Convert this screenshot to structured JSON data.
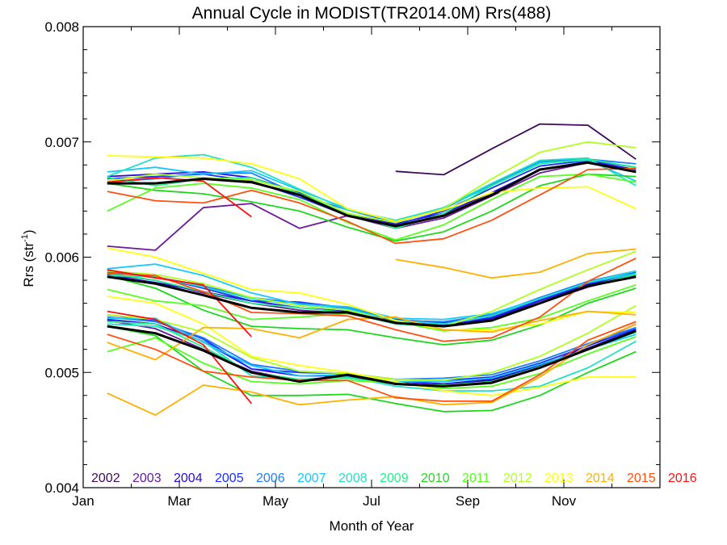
{
  "chart_data": {
    "type": "line",
    "title": "Annual Cycle in MODIST(TR2014.0M) Rrs(488)",
    "xlabel": "Month of Year",
    "ylabel": "Rrs (str",
    "ylabel_sup": "-1",
    "ylabel_close": ")",
    "xlim": [
      1,
      13
    ],
    "ylim": [
      0.004,
      0.008
    ],
    "x_ticks": [
      {
        "value": 1,
        "label": "Jan"
      },
      {
        "value": 3,
        "label": "Mar"
      },
      {
        "value": 5,
        "label": "May"
      },
      {
        "value": 7,
        "label": "Jul"
      },
      {
        "value": 9,
        "label": "Sep"
      },
      {
        "value": 11,
        "label": "Nov"
      }
    ],
    "y_ticks": [
      {
        "value": 0.004,
        "label": "0.004"
      },
      {
        "value": 0.005,
        "label": "0.005"
      },
      {
        "value": 0.006,
        "label": "0.006"
      },
      {
        "value": 0.007,
        "label": "0.007"
      },
      {
        "value": 0.008,
        "label": "0.008"
      }
    ],
    "x": [
      1.5,
      2.5,
      3.5,
      4.5,
      5.5,
      6.5,
      7.5,
      8.5,
      9.5,
      10.5,
      11.5,
      12.5
    ],
    "legend_placement": "bottom",
    "series": [
      {
        "name": "2002",
        "color": "#3d0a5a",
        "lines": [
          [
            null,
            null,
            null,
            null,
            null,
            null,
            0.006745,
            0.006715,
            0.00694,
            0.007155,
            0.007145,
            0.00685
          ],
          [
            null,
            null,
            null,
            null,
            null,
            null,
            0.00544,
            0.0054,
            0.00546,
            0.00562,
            0.00577,
            0.00588
          ],
          [
            null,
            null,
            null,
            null,
            null,
            null,
            0.00492,
            0.0049,
            0.00493,
            0.00505,
            0.00523,
            0.00542
          ]
        ]
      },
      {
        "name": "2003",
        "color": "#6a1a9a",
        "lines": [
          [
            0.006095,
            0.00606,
            0.00643,
            0.006465,
            0.00625,
            0.00636,
            0.00625,
            0.00634,
            0.00653,
            0.00673,
            0.00682,
            0.00674
          ],
          [
            0.00585,
            0.0058,
            0.00569,
            0.0056,
            0.00554,
            0.00551,
            0.00543,
            0.00541,
            0.00546,
            0.0056,
            0.00574,
            0.00584
          ],
          [
            0.00545,
            0.00538,
            0.0052,
            0.00501,
            0.00493,
            0.00496,
            0.0049,
            0.00488,
            0.00492,
            0.00505,
            0.00521,
            0.00536
          ]
        ]
      },
      {
        "name": "2004",
        "color": "#2a0adc",
        "lines": [
          [
            0.0067,
            0.00672,
            0.00674,
            0.00669,
            0.00656,
            0.00638,
            0.00629,
            0.00638,
            0.00656,
            0.00676,
            0.00683,
            0.00676
          ],
          [
            0.00584,
            0.00578,
            0.0057,
            0.00562,
            0.00556,
            0.00553,
            0.00544,
            0.00541,
            0.00547,
            0.00562,
            0.00576,
            0.00585
          ],
          [
            0.00546,
            0.00542,
            0.00527,
            0.00503,
            0.00497,
            0.00497,
            0.00492,
            0.0049,
            0.00494,
            0.00506,
            0.00521,
            0.00537
          ]
        ]
      },
      {
        "name": "2005",
        "color": "#1a30ff",
        "lines": [
          [
            0.00668,
            0.0067,
            0.00672,
            0.00666,
            0.00652,
            0.00636,
            0.00628,
            0.0064,
            0.0066,
            0.00679,
            0.00684,
            0.00678
          ],
          [
            0.00588,
            0.00583,
            0.00573,
            0.00562,
            0.00561,
            0.00556,
            0.00546,
            0.00543,
            0.00548,
            0.00563,
            0.00577,
            0.00587
          ],
          [
            0.0055,
            0.00545,
            0.00529,
            0.00503,
            0.005,
            0.00499,
            0.00494,
            0.00493,
            0.00496,
            0.00508,
            0.00523,
            0.00538
          ]
        ]
      },
      {
        "name": "2006",
        "color": "#1a80ff",
        "lines": [
          [
            0.00665,
            0.00668,
            0.00673,
            0.00673,
            0.00654,
            0.00641,
            0.0063,
            0.00642,
            0.00663,
            0.00683,
            0.00685,
            0.00681
          ],
          [
            0.00587,
            0.00583,
            0.00575,
            0.00565,
            0.0056,
            0.00556,
            0.00545,
            0.00544,
            0.0055,
            0.00565,
            0.00579,
            0.00588
          ],
          [
            0.00548,
            0.00544,
            0.0053,
            0.00507,
            0.00501,
            0.00499,
            0.00494,
            0.00495,
            0.00498,
            0.0051,
            0.00525,
            0.00539
          ]
        ]
      },
      {
        "name": "2007",
        "color": "#15c8ff",
        "lines": [
          [
            0.00674,
            0.00678,
            0.00672,
            0.00675,
            0.00658,
            0.00642,
            0.00631,
            0.00643,
            0.00662,
            0.00682,
            0.00684,
            0.00666
          ],
          [
            0.0059,
            0.00594,
            0.00584,
            0.00569,
            0.00559,
            0.00557,
            0.00547,
            0.00546,
            0.00551,
            0.00564,
            0.00578,
            0.00586
          ],
          [
            0.00547,
            0.00547,
            0.00526,
            0.00506,
            0.00497,
            0.00498,
            0.00492,
            0.00492,
            0.00495,
            0.00507,
            0.0052,
            0.00533
          ]
        ]
      },
      {
        "name": "2008",
        "color": "#25e0c8",
        "lines": [
          [
            0.0067,
            0.00686,
            0.00689,
            0.00678,
            0.00659,
            0.00641,
            0.00632,
            0.00643,
            0.00664,
            0.00684,
            0.00686,
            0.00662
          ],
          [
            0.00584,
            0.00583,
            0.00574,
            0.00564,
            0.00558,
            0.00555,
            0.00545,
            0.00542,
            0.00549,
            0.00564,
            0.00578,
            0.00588
          ],
          [
            0.00542,
            0.0054,
            0.00527,
            0.00497,
            0.00494,
            0.00496,
            0.00488,
            0.00484,
            0.00484,
            0.00488,
            0.00504,
            0.00527
          ]
        ]
      },
      {
        "name": "2009",
        "color": "#25f08a",
        "lines": [
          [
            0.00669,
            0.00662,
            0.00668,
            0.00669,
            0.00655,
            0.00638,
            0.00625,
            0.00638,
            0.00662,
            0.00681,
            0.00685,
            0.00678
          ],
          [
            0.00586,
            0.0058,
            0.0057,
            0.0056,
            0.00556,
            0.00552,
            0.00542,
            0.0054,
            0.00545,
            0.0056,
            0.00575,
            0.00585
          ],
          [
            0.00544,
            0.00542,
            0.00522,
            0.005,
            0.00494,
            0.00495,
            0.0049,
            0.00489,
            0.00492,
            0.00505,
            0.0052,
            0.00535
          ]
        ]
      },
      {
        "name": "2010",
        "color": "#1ed81e",
        "lines": [
          [
            0.00664,
            0.00658,
            0.00655,
            0.00648,
            0.0064,
            0.00626,
            0.00614,
            0.00622,
            0.0064,
            0.00662,
            0.00672,
            0.0067
          ],
          [
            0.00584,
            0.00573,
            0.00554,
            0.0054,
            0.00538,
            0.00537,
            0.0053,
            0.00524,
            0.00528,
            0.00541,
            0.0056,
            0.00573
          ],
          [
            0.0054,
            0.00532,
            0.00501,
            0.0048,
            0.0048,
            0.00481,
            0.00473,
            0.00466,
            0.00467,
            0.0048,
            0.005,
            0.00518
          ]
        ]
      },
      {
        "name": "2011",
        "color": "#58ff20",
        "lines": [
          [
            0.0064,
            0.0066,
            0.00664,
            0.0066,
            0.0065,
            0.0063,
            0.00615,
            0.00628,
            0.0065,
            0.0067,
            0.00672,
            0.00665
          ],
          [
            0.00572,
            0.00562,
            0.00558,
            0.00546,
            0.00548,
            0.00551,
            0.00544,
            0.00536,
            0.00539,
            0.00547,
            0.00562,
            0.00576
          ],
          [
            0.00518,
            0.0053,
            0.00508,
            0.00492,
            0.0049,
            0.00493,
            0.00491,
            0.00486,
            0.00488,
            0.00499,
            0.00516,
            0.00531
          ]
        ]
      },
      {
        "name": "2012",
        "color": "#b0ff20",
        "lines": [
          [
            0.00666,
            0.00672,
            0.00669,
            0.00667,
            0.00657,
            0.00638,
            0.0063,
            0.00642,
            0.00668,
            0.00691,
            0.007,
            0.00695
          ],
          [
            0.00588,
            0.00585,
            0.00577,
            0.00565,
            0.00558,
            0.00554,
            0.00543,
            0.0054,
            0.00553,
            0.00572,
            0.00589,
            0.00605
          ],
          [
            0.0055,
            0.00546,
            0.00535,
            0.00513,
            0.00501,
            0.00499,
            0.00494,
            0.00493,
            0.005,
            0.00514,
            0.00534,
            0.00558
          ]
        ]
      },
      {
        "name": "2013",
        "color": "#ffff10",
        "lines": [
          [
            0.00688,
            0.00687,
            0.00686,
            0.00681,
            0.00668,
            0.00642,
            0.00631,
            0.00641,
            0.00656,
            0.0066,
            0.00661,
            0.00642
          ],
          [
            0.00608,
            0.006,
            0.00586,
            0.00572,
            0.00569,
            0.00559,
            0.00545,
            0.00537,
            0.00537,
            0.00542,
            0.00553,
            0.00552
          ],
          [
            0.00566,
            0.0056,
            0.00542,
            0.00514,
            0.00506,
            0.005,
            0.00492,
            0.00484,
            0.0048,
            0.00487,
            0.00496,
            0.00496
          ]
        ]
      },
      {
        "name": "2014",
        "color": "#ffb000",
        "lines": [
          [
            null,
            null,
            null,
            null,
            null,
            null,
            0.00598,
            0.00591,
            0.00582,
            0.00587,
            0.00603,
            0.00607
          ],
          [
            0.00526,
            0.00511,
            0.00539,
            0.00538,
            0.0053,
            0.00546,
            0.00548,
            0.00537,
            0.00535,
            0.00545,
            0.00553,
            0.0055
          ],
          [
            0.00482,
            0.00463,
            0.00489,
            0.00483,
            0.00472,
            0.00476,
            0.00479,
            0.00472,
            0.00474,
            0.00496,
            0.00524,
            0.00542
          ]
        ]
      },
      {
        "name": "2015",
        "color": "#ff5010",
        "lines": [
          [
            0.00657,
            0.00649,
            0.00647,
            0.00658,
            0.00647,
            0.00631,
            0.00612,
            0.00616,
            0.00632,
            0.00654,
            0.00676,
            0.00677
          ],
          [
            0.00586,
            0.00584,
            0.0057,
            0.00552,
            0.00551,
            0.00549,
            0.00537,
            0.00527,
            0.0053,
            0.00548,
            0.00579,
            0.00599
          ],
          [
            0.00533,
            0.0052,
            0.00501,
            0.00496,
            0.00493,
            0.00493,
            0.00478,
            0.00475,
            0.00475,
            0.00498,
            0.00528,
            0.00544
          ]
        ]
      },
      {
        "name": "2016",
        "color": "#ff1010",
        "lines": [
          [
            0.00665,
            0.00669,
            0.00666,
            0.00635,
            null,
            null,
            null,
            null,
            null,
            null,
            null,
            null
          ],
          [
            0.00589,
            0.00582,
            0.00576,
            0.00531,
            null,
            null,
            null,
            null,
            null,
            null,
            null,
            null
          ],
          [
            0.00553,
            0.00546,
            0.00524,
            0.00473,
            null,
            null,
            null,
            null,
            null,
            null,
            null,
            null
          ]
        ]
      },
      {
        "name": "",
        "color": "#000000",
        "bold": true,
        "lines": [
          [
            0.00664,
            0.00664,
            0.00668,
            0.00665,
            0.00654,
            0.00636,
            0.00627,
            0.00636,
            0.00654,
            0.00676,
            0.00682,
            0.00674
          ],
          [
            0.00583,
            0.00577,
            0.00567,
            0.00556,
            0.00552,
            0.00552,
            0.00543,
            0.0054,
            0.00545,
            0.0056,
            0.00575,
            0.00583
          ],
          [
            0.0054,
            0.00534,
            0.00519,
            0.005,
            0.00492,
            0.00498,
            0.0049,
            0.00488,
            0.00491,
            0.00504,
            0.0052,
            0.00536
          ]
        ]
      }
    ]
  }
}
